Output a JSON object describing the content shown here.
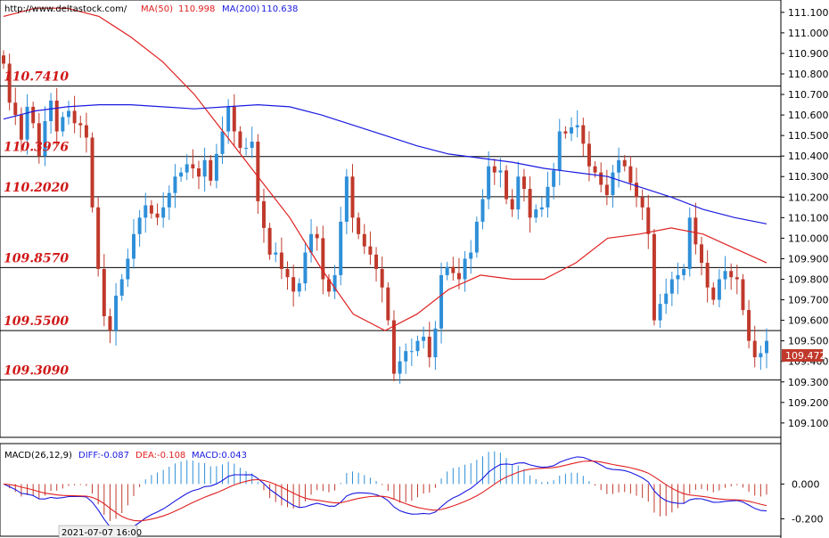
{
  "header": {
    "url": "http://www.deltastock.com/",
    "ma50_label": "MA(50)",
    "ma50_value": "110.998",
    "ma200_label": "MA(200)",
    "ma200_value": "110.638"
  },
  "macd_header": {
    "label": "MACD(26,12,9)",
    "diff": "DIFF:-0.087",
    "dea": "DEA:-0.108",
    "macd": "MACD:0.043"
  },
  "time_label": "2021-07-07 16:00",
  "colors": {
    "up": "#2e8fd8",
    "down": "#c0392b",
    "ma50": "#e02020",
    "ma200": "#1a1ae0",
    "level_text": "#d01818",
    "macd_diff": "#1a1ae0",
    "macd_dea": "#e02020"
  },
  "chart_data": {
    "type": "candlestick",
    "y_range": [
      109.03,
      111.16
    ],
    "y_ticks": [
      "111.100",
      "111.000",
      "110.900",
      "110.800",
      "110.700",
      "110.600",
      "110.500",
      "110.400",
      "110.300",
      "110.200",
      "110.100",
      "110.000",
      "109.900",
      "109.800",
      "109.700",
      "109.600",
      "109.500",
      "109.400",
      "109.300",
      "109.200",
      "109.100"
    ],
    "levels": [
      "110.7410",
      "110.3976",
      "110.2020",
      "109.8570",
      "109.5500",
      "109.3090"
    ],
    "current_price": "109.472",
    "macd_range": [
      -0.29,
      0.12
    ],
    "macd_ticks": [
      "0.000",
      "-0.200"
    ],
    "closes": [
      110.85,
      110.66,
      110.6,
      110.48,
      110.64,
      110.56,
      110.4,
      110.57,
      110.67,
      110.52,
      110.59,
      110.62,
      110.56,
      110.55,
      110.49,
      110.15,
      109.85,
      109.62,
      109.55,
      109.72,
      109.8,
      109.9,
      110.02,
      110.1,
      110.16,
      110.12,
      110.1,
      110.15,
      110.22,
      110.3,
      110.32,
      110.36,
      110.34,
      110.3,
      110.38,
      110.28,
      110.41,
      110.52,
      110.64,
      110.52,
      110.44,
      110.44,
      110.47,
      110.18,
      110.05,
      109.92,
      109.93,
      109.85,
      109.81,
      109.74,
      109.78,
      109.93,
      110.02,
      110.0,
      109.8,
      109.74,
      109.82,
      110.08,
      110.3,
      110.1,
      110.02,
      109.96,
      109.92,
      109.85,
      109.76,
      109.6,
      109.34,
      109.4,
      109.45,
      109.45,
      109.5,
      109.52,
      109.42,
      109.56,
      109.82,
      109.86,
      109.83,
      109.8,
      109.9,
      109.93,
      110.08,
      110.19,
      110.35,
      110.32,
      110.33,
      110.19,
      110.14,
      110.3,
      110.24,
      110.1,
      110.14,
      110.15,
      110.25,
      110.33,
      110.52,
      110.51,
      110.54,
      110.55,
      110.46,
      110.35,
      110.32,
      110.26,
      110.21,
      110.32,
      110.38,
      110.35,
      110.27,
      110.2,
      110.15,
      110.02,
      109.6,
      109.68,
      109.73,
      109.8,
      109.82,
      109.85,
      110.1,
      109.97,
      109.88,
      109.76,
      109.7,
      109.8,
      109.84,
      109.81,
      109.8,
      109.65,
      109.5,
      109.42,
      109.44,
      109.5
    ],
    "ma50": [
      111.08,
      111.12,
      111.12,
      111.08,
      110.98,
      110.86,
      110.7,
      110.5,
      110.3,
      110.1,
      109.85,
      109.63,
      109.55,
      109.63,
      109.75,
      109.82,
      109.8,
      109.8,
      109.88,
      110.0,
      110.02,
      110.05,
      110.02,
      109.95,
      109.88
    ],
    "ma200": [
      110.58,
      110.62,
      110.64,
      110.65,
      110.65,
      110.64,
      110.63,
      110.64,
      110.65,
      110.64,
      110.6,
      110.55,
      110.5,
      110.45,
      110.41,
      110.39,
      110.37,
      110.34,
      110.32,
      110.3,
      110.25,
      110.2,
      110.14,
      110.1,
      110.07
    ]
  }
}
